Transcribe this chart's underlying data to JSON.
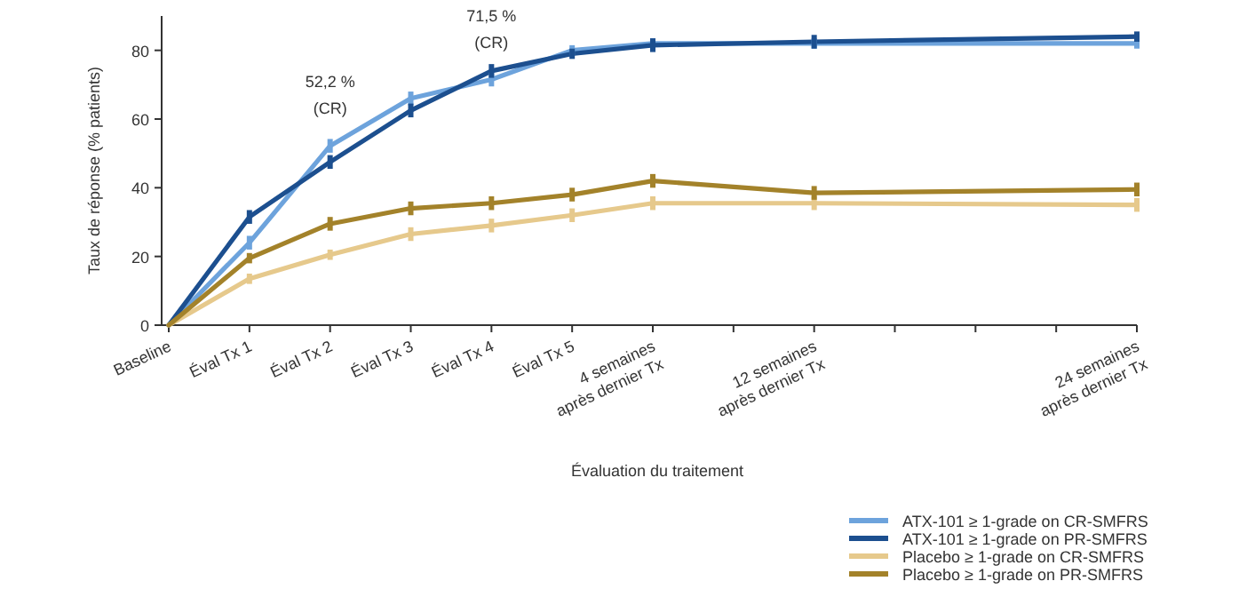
{
  "chart_data": {
    "type": "line",
    "xlabel": "Évaluation du traitement",
    "ylabel": "Taux de réponse (% patients)",
    "categories": [
      "Baseline",
      "Éval Tx 1",
      "Éval Tx 2",
      "Éval Tx 3",
      "Éval Tx 4",
      "Éval Tx 5",
      "4 semaines\naprès dernier Tx",
      null,
      "12 semaines\naprès dernier Tx",
      null,
      null,
      null,
      "24 semaines\naprès dernier Tx"
    ],
    "ylim": [
      0,
      90
    ],
    "yticks": [
      0,
      20,
      40,
      60,
      80
    ],
    "grid": false,
    "legend": "bottom right",
    "marker": "none",
    "line_style": "solid",
    "series": [
      {
        "name": "ATX-101 ≥ 1-grade on CR-SMFRS",
        "color": "#6da3dc",
        "values": [
          0,
          24,
          52.2,
          66,
          71.5,
          80,
          82,
          null,
          82,
          null,
          null,
          null,
          82
        ],
        "errors": [
          null,
          2,
          2,
          2,
          2,
          1.5,
          1.5,
          null,
          1.5,
          null,
          null,
          null,
          1.5
        ]
      },
      {
        "name": "ATX-101 ≥ 1-grade on PR-SMFRS",
        "color": "#1c4f8f",
        "values": [
          0,
          31.5,
          47.5,
          62.5,
          74,
          79,
          81.5,
          null,
          82.5,
          null,
          null,
          null,
          84
        ],
        "errors": [
          null,
          2,
          2,
          2,
          2,
          1.5,
          2,
          null,
          2,
          null,
          null,
          null,
          1.5
        ]
      },
      {
        "name": "Placebo ≥ 1-grade on CR-SMFRS",
        "color": "#e6c98c",
        "values": [
          0,
          13.5,
          20.5,
          26.5,
          29,
          32,
          35.5,
          null,
          35.5,
          null,
          null,
          null,
          35
        ],
        "errors": [
          null,
          1.5,
          1.5,
          2,
          2,
          2,
          2,
          null,
          2,
          null,
          null,
          null,
          2
        ]
      },
      {
        "name": "Placebo ≥ 1-grade on PR-SMFRS",
        "color": "#a3822a",
        "values": [
          0,
          19.5,
          29.5,
          34,
          35.5,
          38,
          42,
          null,
          38.5,
          null,
          null,
          null,
          39.5
        ],
        "errors": [
          null,
          1.5,
          2,
          2,
          2,
          2,
          2,
          null,
          2,
          null,
          null,
          null,
          2
        ]
      }
    ],
    "annotations": [
      {
        "text": "52,2 %\n(CR)",
        "x": "Éval Tx 2",
        "y": 52.2
      },
      {
        "text": "71,5 %\n(CR)",
        "x": "Éval Tx 4",
        "y": 71.5
      }
    ]
  }
}
